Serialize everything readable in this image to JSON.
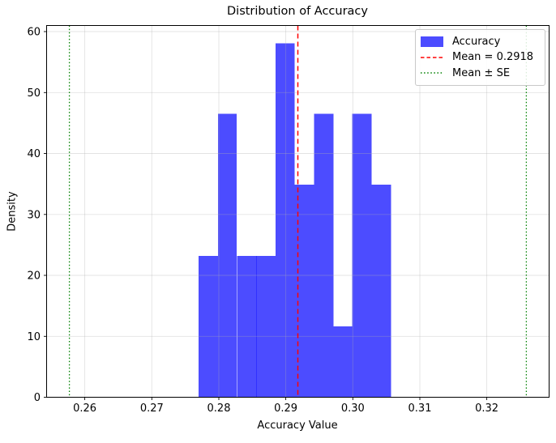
{
  "figure": {
    "title": "Distribution of Accuracy",
    "xlabel": "Accuracy Value",
    "ylabel": "Density"
  },
  "legend": {
    "position": "upper right",
    "items": [
      {
        "label": "Accuracy",
        "type": "patch",
        "color": "#0000ff"
      },
      {
        "label": "Mean = 0.2918",
        "type": "dashed-line",
        "color": "#ff0000"
      },
      {
        "label": "Mean ± SE",
        "type": "dotted-line",
        "color": "#008000"
      }
    ]
  },
  "chart_data": {
    "type": "bar",
    "subtype": "histogram-density",
    "title": "Distribution of Accuracy",
    "xlabel": "Accuracy Value",
    "ylabel": "Density",
    "bin_edges": [
      0.277,
      0.2799,
      0.2827,
      0.2856,
      0.2885,
      0.2913,
      0.2942,
      0.2971,
      0.2999,
      0.3028,
      0.3057
    ],
    "densities": [
      23.2,
      46.5,
      23.2,
      23.2,
      58.1,
      34.9,
      46.5,
      11.6,
      46.5,
      34.9
    ],
    "mean": 0.2918,
    "mean_minus_se": 0.2577,
    "mean_plus_se": 0.3259,
    "xlim": [
      0.2543,
      0.3293
    ],
    "ylim": [
      0,
      61.0
    ],
    "xticks": [
      0.26,
      0.27,
      0.28,
      0.29,
      0.3,
      0.31,
      0.32
    ],
    "xtick_labels": [
      "0.26",
      "0.27",
      "0.28",
      "0.29",
      "0.30",
      "0.31",
      "0.32"
    ],
    "yticks": [
      0,
      10,
      20,
      30,
      40,
      50,
      60
    ],
    "ytick_labels": [
      "0",
      "10",
      "20",
      "30",
      "40",
      "50",
      "60"
    ],
    "grid": true,
    "grid_color": "#b0b0b0",
    "grid_alpha": 0.35,
    "bar_color": "#0000ff",
    "bar_alpha": 0.7,
    "mean_line_color": "#ff0000",
    "mean_line_style": "dashed",
    "se_line_color": "#008000",
    "se_line_style": "dotted",
    "legend_position": "upper right"
  }
}
